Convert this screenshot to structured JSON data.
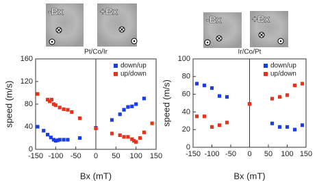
{
  "images": [
    {
      "label": "-Bx"
    },
    {
      "label": "+Bx"
    },
    {
      "label": "-Bx"
    },
    {
      "label": "+Bx"
    }
  ],
  "chart_data": [
    {
      "type": "scatter",
      "title": "Pt/Co/Ir",
      "xlabel": "Bx (mT)",
      "ylabel": "speed (m/s)",
      "xlim": [
        -150,
        150
      ],
      "ylim": [
        0,
        160
      ],
      "xticks": [
        -150,
        -100,
        -50,
        0,
        50,
        100,
        150
      ],
      "yticks": [
        0,
        40,
        80,
        120,
        160
      ],
      "legend": "upper right",
      "series": [
        {
          "name": "down/up",
          "color": "#1a3de8",
          "x": [
            -145,
            -130,
            -120,
            -112,
            -105,
            -100,
            -95,
            -90,
            -80,
            -70,
            -40,
            0,
            40,
            60,
            70,
            80,
            90,
            100,
            120
          ],
          "values": [
            40,
            33,
            26,
            21,
            17,
            15,
            16,
            17,
            17,
            17,
            20,
            38,
            52,
            62,
            70,
            75,
            76,
            80,
            90
          ]
        },
        {
          "name": "up/down",
          "color": "#e8321a",
          "x": [
            -145,
            -120,
            -115,
            -110,
            -105,
            -100,
            -90,
            -80,
            -70,
            -60,
            -40,
            0,
            40,
            60,
            70,
            80,
            90,
            95,
            100,
            110,
            120,
            140
          ],
          "values": [
            98,
            88,
            85,
            88,
            80,
            78,
            74,
            71,
            70,
            66,
            55,
            37,
            28,
            25,
            22,
            22,
            18,
            15,
            13,
            20,
            30,
            46
          ]
        }
      ]
    },
    {
      "type": "scatter",
      "title": "Ir/Co/Pt",
      "xlabel": "Bx (mT)",
      "ylabel": "speed (m/s)",
      "xlim": [
        -150,
        150
      ],
      "ylim": [
        0,
        100
      ],
      "xticks": [
        -150,
        -100,
        -50,
        0,
        50,
        100,
        150
      ],
      "yticks": [
        0,
        20,
        40,
        60,
        80,
        100
      ],
      "legend": "upper right",
      "series": [
        {
          "name": "down/up",
          "color": "#1a3de8",
          "x": [
            -140,
            -120,
            -100,
            -80,
            -60,
            0,
            60,
            80,
            100,
            120,
            140
          ],
          "values": [
            72,
            70,
            67,
            58,
            57,
            49,
            27,
            23,
            23,
            20,
            25
          ]
        },
        {
          "name": "up/down",
          "color": "#e8321a",
          "x": [
            -140,
            -120,
            -100,
            -80,
            -60,
            0,
            60,
            80,
            100,
            120,
            140
          ],
          "values": [
            35,
            35,
            23,
            25,
            28,
            49,
            55,
            57,
            59,
            70,
            72
          ]
        }
      ]
    }
  ]
}
